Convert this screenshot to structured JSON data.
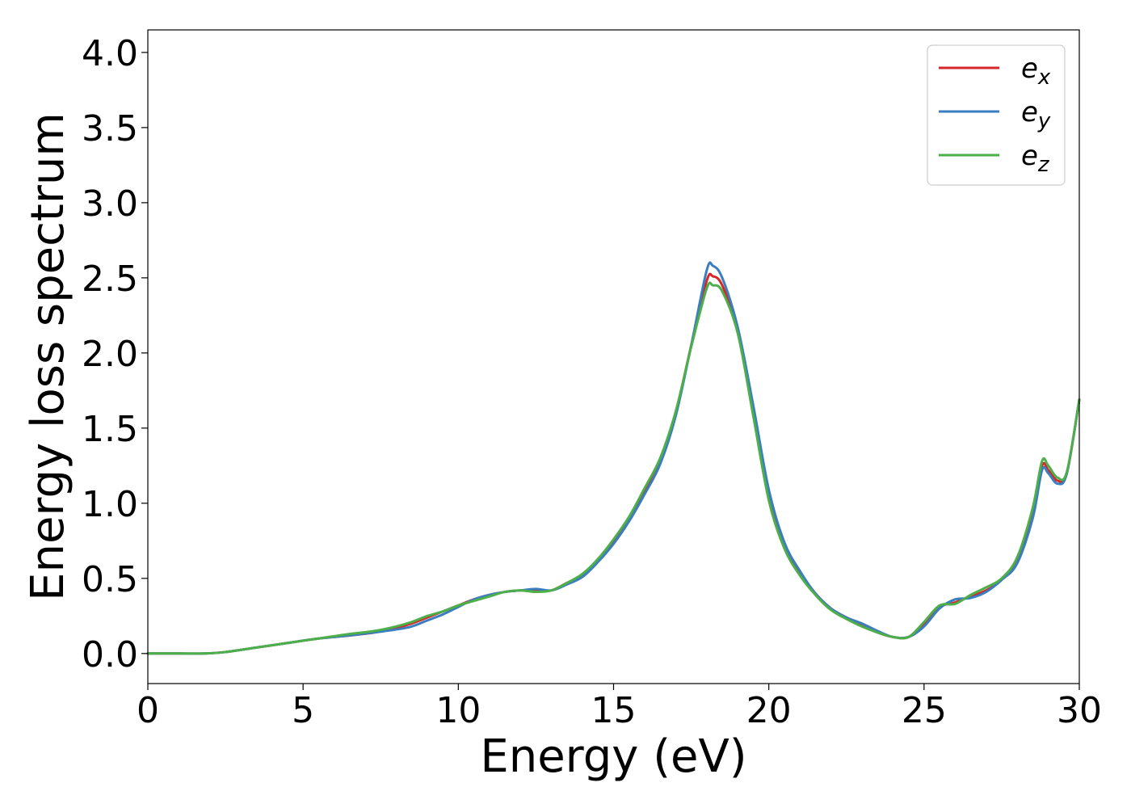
{
  "chart_data": {
    "type": "line",
    "xlabel": "Energy (eV)",
    "ylabel": "Energy loss spectrum",
    "xlim": [
      0,
      30
    ],
    "ylim": [
      -0.2,
      4.15
    ],
    "xticks": [
      0,
      5,
      10,
      15,
      20,
      25,
      30
    ],
    "xtick_labels": [
      "0",
      "5",
      "10",
      "15",
      "20",
      "25",
      "30"
    ],
    "yticks": [
      0.0,
      0.5,
      1.0,
      1.5,
      2.0,
      2.5,
      3.0,
      3.5,
      4.0
    ],
    "ytick_labels": [
      "0.0",
      "0.5",
      "1.0",
      "1.5",
      "2.0",
      "2.5",
      "3.0",
      "3.5",
      "4.0"
    ],
    "grid": false,
    "legend_position": "top-right",
    "x": [
      0,
      1,
      1.8,
      2.5,
      3.5,
      4.5,
      5.5,
      6.5,
      7.3,
      8,
      8.5,
      9,
      9.5,
      10,
      10.5,
      11,
      11.5,
      12,
      12.5,
      13,
      13.5,
      14,
      14.5,
      15,
      15.5,
      16,
      16.5,
      17,
      17.5,
      18,
      18.2,
      18.5,
      19,
      19.5,
      20,
      20.5,
      21,
      21.5,
      22,
      22.5,
      23,
      23.5,
      24,
      24.5,
      25,
      25.5,
      26,
      26.5,
      27,
      27.5,
      28,
      28.5,
      28.8,
      29,
      29.3,
      29.6,
      30
    ],
    "series": [
      {
        "name": "e_x",
        "label_base": "e",
        "label_sub": "x",
        "color": "#d62728",
        "values": [
          0,
          0,
          0,
          0.01,
          0.04,
          0.07,
          0.1,
          0.12,
          0.14,
          0.17,
          0.2,
          0.24,
          0.28,
          0.32,
          0.36,
          0.39,
          0.41,
          0.42,
          0.42,
          0.42,
          0.47,
          0.52,
          0.62,
          0.75,
          0.9,
          1.08,
          1.28,
          1.6,
          2.05,
          2.48,
          2.51,
          2.45,
          2.15,
          1.6,
          1.05,
          0.72,
          0.54,
          0.4,
          0.3,
          0.24,
          0.19,
          0.14,
          0.11,
          0.11,
          0.2,
          0.31,
          0.34,
          0.38,
          0.42,
          0.49,
          0.62,
          0.95,
          1.25,
          1.22,
          1.15,
          1.2,
          1.69
        ]
      },
      {
        "name": "e_y",
        "label_base": "e",
        "label_sub": "y",
        "color": "#3a7dc0",
        "values": [
          0,
          0,
          0,
          0.01,
          0.04,
          0.07,
          0.1,
          0.12,
          0.14,
          0.16,
          0.18,
          0.22,
          0.26,
          0.31,
          0.36,
          0.39,
          0.41,
          0.42,
          0.43,
          0.42,
          0.46,
          0.51,
          0.61,
          0.73,
          0.88,
          1.06,
          1.26,
          1.58,
          2.05,
          2.55,
          2.58,
          2.5,
          2.17,
          1.65,
          1.09,
          0.74,
          0.55,
          0.4,
          0.3,
          0.24,
          0.2,
          0.15,
          0.11,
          0.11,
          0.18,
          0.3,
          0.36,
          0.37,
          0.41,
          0.49,
          0.6,
          0.9,
          1.22,
          1.2,
          1.13,
          1.2,
          1.69
        ]
      },
      {
        "name": "e_z",
        "label_base": "e",
        "label_sub": "z",
        "color": "#4daf4a",
        "values": [
          0,
          0,
          0,
          0.01,
          0.04,
          0.07,
          0.1,
          0.13,
          0.15,
          0.18,
          0.21,
          0.25,
          0.28,
          0.32,
          0.35,
          0.38,
          0.41,
          0.42,
          0.41,
          0.42,
          0.47,
          0.53,
          0.63,
          0.76,
          0.91,
          1.1,
          1.3,
          1.61,
          2.04,
          2.43,
          2.45,
          2.41,
          2.13,
          1.58,
          1.02,
          0.7,
          0.52,
          0.39,
          0.29,
          0.23,
          0.18,
          0.14,
          0.11,
          0.11,
          0.21,
          0.32,
          0.33,
          0.39,
          0.44,
          0.5,
          0.64,
          0.97,
          1.28,
          1.25,
          1.17,
          1.21,
          1.69
        ]
      }
    ]
  }
}
